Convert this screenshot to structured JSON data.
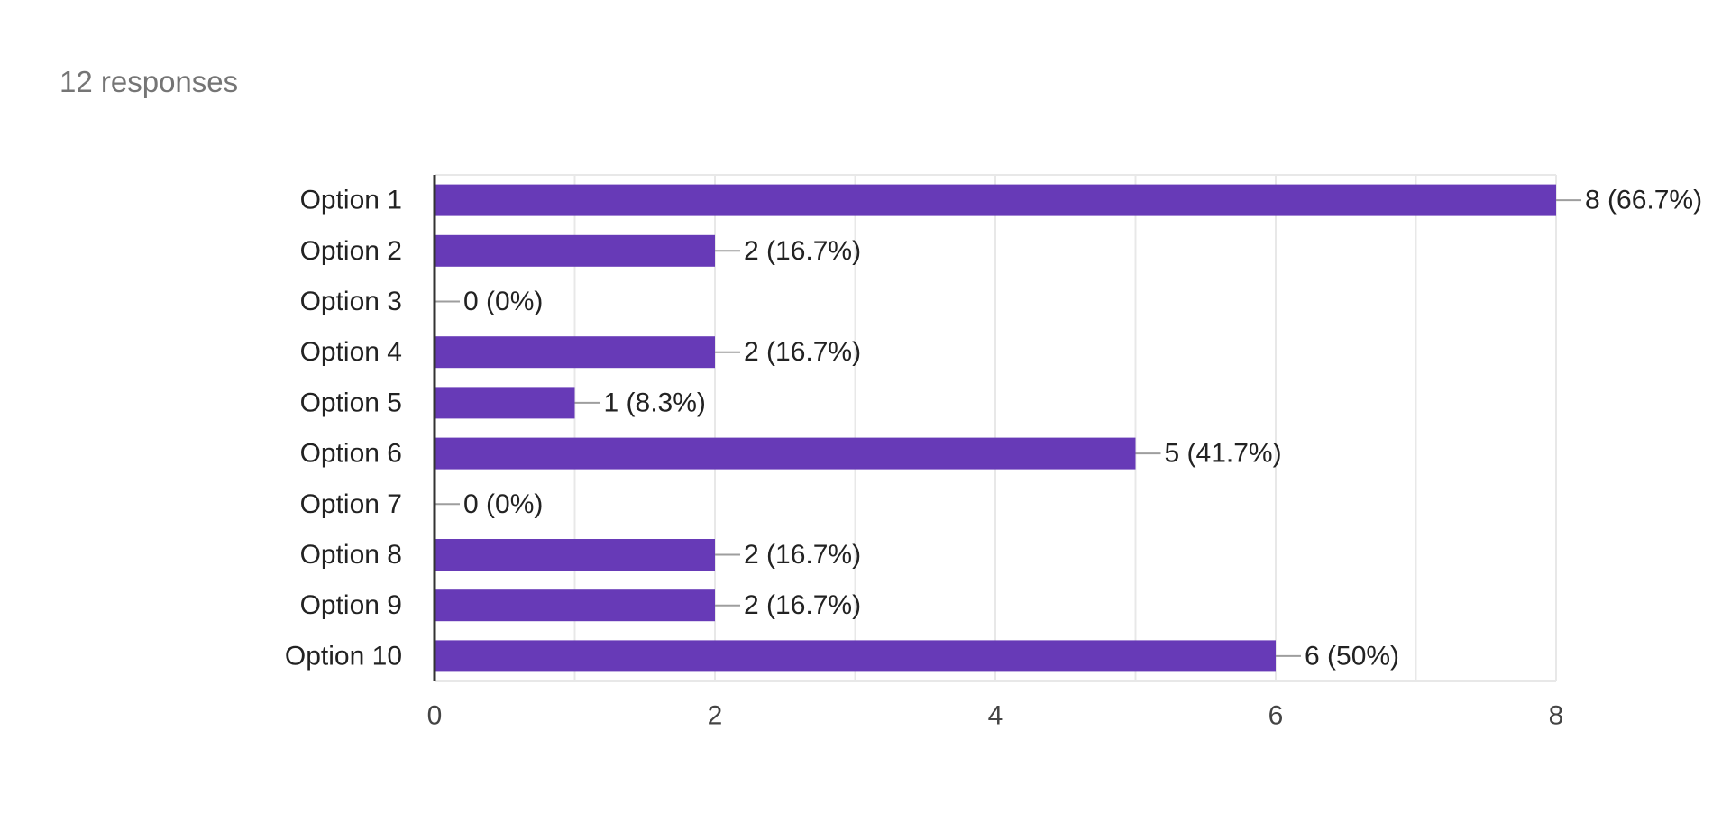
{
  "summary": {
    "responses_label": "12 responses"
  },
  "colors": {
    "bar": "#673AB7",
    "grid": "#E8E8E8",
    "axis": "#333333",
    "connector": "#9E9E9E",
    "label_text": "#222222",
    "tick_text": "#444444",
    "summary_text": "#757575"
  },
  "chart_data": {
    "type": "bar",
    "orientation": "horizontal",
    "categories": [
      "Option 1",
      "Option 2",
      "Option 3",
      "Option 4",
      "Option 5",
      "Option 6",
      "Option 7",
      "Option 8",
      "Option 9",
      "Option 10"
    ],
    "values": [
      8,
      2,
      0,
      2,
      1,
      5,
      0,
      2,
      2,
      6
    ],
    "data_labels": [
      "8 (66.7%)",
      "2 (16.7%)",
      "0 (0%)",
      "2 (16.7%)",
      "1 (8.3%)",
      "5 (41.7%)",
      "0 (0%)",
      "2 (16.7%)",
      "2 (16.7%)",
      "6 (50%)"
    ],
    "xlim": [
      0,
      8
    ],
    "x_ticks": [
      0,
      2,
      4,
      6,
      8
    ],
    "grid": true,
    "legend": "none",
    "title": "",
    "xlabel": "",
    "ylabel": ""
  }
}
